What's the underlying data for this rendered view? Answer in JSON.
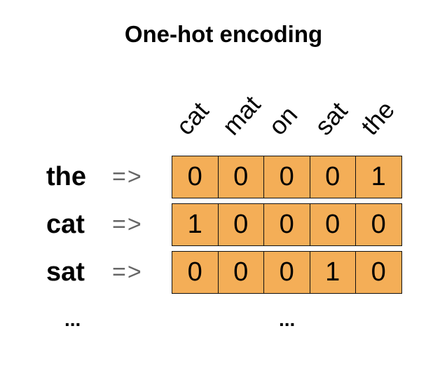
{
  "title": "One-hot encoding",
  "vocabulary": [
    "cat",
    "mat",
    "on",
    "sat",
    "the"
  ],
  "rows": [
    {
      "word": "the",
      "arrow": "=>",
      "vector": [
        0,
        0,
        0,
        0,
        1
      ]
    },
    {
      "word": "cat",
      "arrow": "=>",
      "vector": [
        1,
        0,
        0,
        0,
        0
      ]
    },
    {
      "word": "sat",
      "arrow": "=>",
      "vector": [
        0,
        0,
        0,
        1,
        0
      ]
    }
  ],
  "ellipsis": "...",
  "cell_color": "#F4AE57"
}
